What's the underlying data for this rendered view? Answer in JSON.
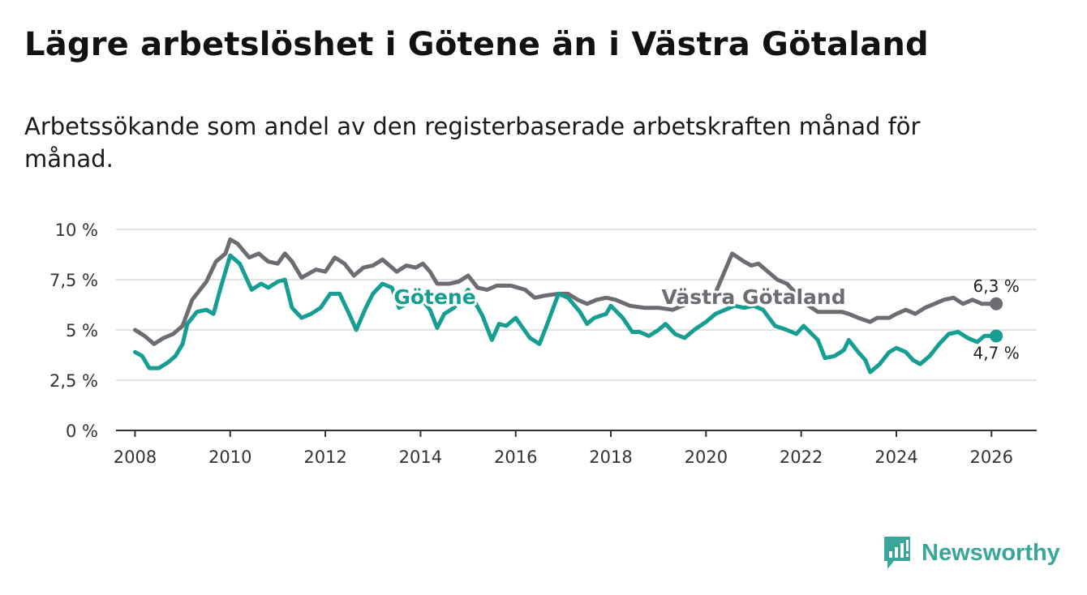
{
  "title": "Lägre arbetslöshet i Götene än i Västra Götaland",
  "subtitle": "Arbetssökande som andel av den registerbaserade arbetskraften månad för månad.",
  "brand": {
    "name": "Newsworthy",
    "color": "#3aa69a",
    "icon": "newsworthy-logo-icon"
  },
  "chart_data": {
    "type": "line",
    "title": "Lägre arbetslöshet i Götene än i Västra Götaland",
    "xlabel": "",
    "ylabel": "",
    "xlim": [
      2007.6,
      2026.95
    ],
    "ylim": [
      0,
      10
    ],
    "x_ticks": [
      2008,
      2010,
      2012,
      2014,
      2016,
      2018,
      2020,
      2022,
      2024,
      2026
    ],
    "x_tick_labels": [
      "2008",
      "2010",
      "2012",
      "2014",
      "2016",
      "2018",
      "2020",
      "2022",
      "2024",
      "2026"
    ],
    "y_ticks": [
      0,
      2.5,
      5,
      7.5,
      10
    ],
    "y_tick_labels": [
      "0 %",
      "2,5 %",
      "5 %",
      "7,5 %",
      "10 %"
    ],
    "grid": true,
    "series": [
      {
        "name": "Västra Götaland",
        "color": "#6e6c73",
        "end_label": "6,3 %",
        "points": [
          [
            2008.0,
            5.0
          ],
          [
            2008.2,
            4.7
          ],
          [
            2008.4,
            4.3
          ],
          [
            2008.6,
            4.6
          ],
          [
            2008.8,
            4.8
          ],
          [
            2009.0,
            5.2
          ],
          [
            2009.2,
            6.5
          ],
          [
            2009.5,
            7.4
          ],
          [
            2009.7,
            8.4
          ],
          [
            2009.9,
            8.8
          ],
          [
            2010.0,
            9.5
          ],
          [
            2010.15,
            9.3
          ],
          [
            2010.4,
            8.6
          ],
          [
            2010.6,
            8.8
          ],
          [
            2010.8,
            8.4
          ],
          [
            2011.0,
            8.3
          ],
          [
            2011.15,
            8.8
          ],
          [
            2011.3,
            8.4
          ],
          [
            2011.5,
            7.6
          ],
          [
            2011.8,
            8.0
          ],
          [
            2012.0,
            7.9
          ],
          [
            2012.2,
            8.6
          ],
          [
            2012.4,
            8.3
          ],
          [
            2012.6,
            7.7
          ],
          [
            2012.8,
            8.1
          ],
          [
            2013.0,
            8.2
          ],
          [
            2013.2,
            8.5
          ],
          [
            2013.5,
            7.9
          ],
          [
            2013.7,
            8.2
          ],
          [
            2013.9,
            8.1
          ],
          [
            2014.05,
            8.3
          ],
          [
            2014.2,
            7.9
          ],
          [
            2014.35,
            7.3
          ],
          [
            2014.6,
            7.3
          ],
          [
            2014.8,
            7.4
          ],
          [
            2015.0,
            7.7
          ],
          [
            2015.2,
            7.1
          ],
          [
            2015.4,
            7.0
          ],
          [
            2015.6,
            7.2
          ],
          [
            2015.9,
            7.2
          ],
          [
            2016.2,
            7.0
          ],
          [
            2016.4,
            6.6
          ],
          [
            2016.6,
            6.7
          ],
          [
            2016.9,
            6.8
          ],
          [
            2017.1,
            6.8
          ],
          [
            2017.3,
            6.5
          ],
          [
            2017.5,
            6.3
          ],
          [
            2017.7,
            6.5
          ],
          [
            2017.9,
            6.6
          ],
          [
            2018.1,
            6.5
          ],
          [
            2018.4,
            6.2
          ],
          [
            2018.7,
            6.1
          ],
          [
            2019.0,
            6.1
          ],
          [
            2019.3,
            6.0
          ],
          [
            2019.6,
            6.3
          ],
          [
            2019.9,
            6.5
          ],
          [
            2020.1,
            6.3
          ],
          [
            2020.3,
            7.4
          ],
          [
            2020.55,
            8.8
          ],
          [
            2020.8,
            8.4
          ],
          [
            2020.95,
            8.2
          ],
          [
            2021.1,
            8.3
          ],
          [
            2021.3,
            7.9
          ],
          [
            2021.5,
            7.5
          ],
          [
            2021.7,
            7.3
          ],
          [
            2021.9,
            6.8
          ],
          [
            2022.1,
            6.3
          ],
          [
            2022.35,
            5.9
          ],
          [
            2022.6,
            5.9
          ],
          [
            2022.85,
            5.9
          ],
          [
            2023.0,
            5.8
          ],
          [
            2023.2,
            5.6
          ],
          [
            2023.45,
            5.4
          ],
          [
            2023.6,
            5.6
          ],
          [
            2023.85,
            5.6
          ],
          [
            2024.0,
            5.8
          ],
          [
            2024.2,
            6.0
          ],
          [
            2024.4,
            5.8
          ],
          [
            2024.6,
            6.1
          ],
          [
            2024.8,
            6.3
          ],
          [
            2025.0,
            6.5
          ],
          [
            2025.2,
            6.6
          ],
          [
            2025.4,
            6.3
          ],
          [
            2025.6,
            6.5
          ],
          [
            2025.8,
            6.3
          ],
          [
            2026.1,
            6.3
          ]
        ]
      },
      {
        "name": "Götene",
        "color": "#159e91",
        "end_label": "4,7 %",
        "points": [
          [
            2008.0,
            3.9
          ],
          [
            2008.15,
            3.7
          ],
          [
            2008.3,
            3.1
          ],
          [
            2008.5,
            3.1
          ],
          [
            2008.7,
            3.4
          ],
          [
            2008.85,
            3.7
          ],
          [
            2009.0,
            4.3
          ],
          [
            2009.1,
            5.3
          ],
          [
            2009.3,
            5.9
          ],
          [
            2009.5,
            6.0
          ],
          [
            2009.65,
            5.8
          ],
          [
            2009.8,
            7.1
          ],
          [
            2010.0,
            8.7
          ],
          [
            2010.2,
            8.3
          ],
          [
            2010.45,
            7.0
          ],
          [
            2010.65,
            7.3
          ],
          [
            2010.8,
            7.1
          ],
          [
            2011.0,
            7.4
          ],
          [
            2011.15,
            7.5
          ],
          [
            2011.3,
            6.1
          ],
          [
            2011.5,
            5.6
          ],
          [
            2011.7,
            5.8
          ],
          [
            2011.9,
            6.1
          ],
          [
            2012.1,
            6.8
          ],
          [
            2012.3,
            6.8
          ],
          [
            2012.5,
            5.8
          ],
          [
            2012.65,
            5.0
          ],
          [
            2012.85,
            6.1
          ],
          [
            2013.0,
            6.8
          ],
          [
            2013.2,
            7.3
          ],
          [
            2013.4,
            7.1
          ],
          [
            2013.55,
            6.1
          ],
          [
            2013.7,
            6.3
          ],
          [
            2014.0,
            6.6
          ],
          [
            2014.2,
            6.0
          ],
          [
            2014.35,
            5.1
          ],
          [
            2014.5,
            5.8
          ],
          [
            2014.7,
            6.1
          ],
          [
            2015.0,
            7.0
          ],
          [
            2015.3,
            5.7
          ],
          [
            2015.5,
            4.5
          ],
          [
            2015.65,
            5.3
          ],
          [
            2015.8,
            5.2
          ],
          [
            2016.0,
            5.6
          ],
          [
            2016.3,
            4.6
          ],
          [
            2016.5,
            4.3
          ],
          [
            2016.65,
            5.2
          ],
          [
            2016.9,
            6.8
          ],
          [
            2017.1,
            6.6
          ],
          [
            2017.35,
            5.9
          ],
          [
            2017.5,
            5.3
          ],
          [
            2017.65,
            5.6
          ],
          [
            2017.9,
            5.8
          ],
          [
            2018.0,
            6.2
          ],
          [
            2018.25,
            5.6
          ],
          [
            2018.45,
            4.9
          ],
          [
            2018.6,
            4.9
          ],
          [
            2018.8,
            4.7
          ],
          [
            2019.0,
            5.0
          ],
          [
            2019.15,
            5.3
          ],
          [
            2019.35,
            4.8
          ],
          [
            2019.55,
            4.6
          ],
          [
            2019.75,
            5.0
          ],
          [
            2020.0,
            5.4
          ],
          [
            2020.2,
            5.8
          ],
          [
            2020.4,
            6.0
          ],
          [
            2020.6,
            6.2
          ],
          [
            2020.8,
            6.1
          ],
          [
            2021.0,
            6.2
          ],
          [
            2021.2,
            6.0
          ],
          [
            2021.45,
            5.2
          ],
          [
            2021.7,
            5.0
          ],
          [
            2021.9,
            4.8
          ],
          [
            2022.05,
            5.2
          ],
          [
            2022.35,
            4.5
          ],
          [
            2022.5,
            3.6
          ],
          [
            2022.7,
            3.7
          ],
          [
            2022.9,
            4.0
          ],
          [
            2023.0,
            4.5
          ],
          [
            2023.2,
            3.9
          ],
          [
            2023.35,
            3.5
          ],
          [
            2023.45,
            2.9
          ],
          [
            2023.65,
            3.3
          ],
          [
            2023.85,
            3.9
          ],
          [
            2024.0,
            4.1
          ],
          [
            2024.2,
            3.9
          ],
          [
            2024.35,
            3.5
          ],
          [
            2024.5,
            3.3
          ],
          [
            2024.7,
            3.7
          ],
          [
            2024.9,
            4.3
          ],
          [
            2025.1,
            4.8
          ],
          [
            2025.3,
            4.9
          ],
          [
            2025.5,
            4.6
          ],
          [
            2025.7,
            4.4
          ],
          [
            2025.85,
            4.7
          ],
          [
            2026.1,
            4.7
          ]
        ]
      }
    ],
    "annotations": [
      {
        "series": "Götene",
        "text": "Götene",
        "x": 2014.3,
        "y": 6.3
      },
      {
        "series": "Västra Götaland",
        "text": "Västra Götaland",
        "x": 2021.0,
        "y": 6.3
      }
    ]
  }
}
